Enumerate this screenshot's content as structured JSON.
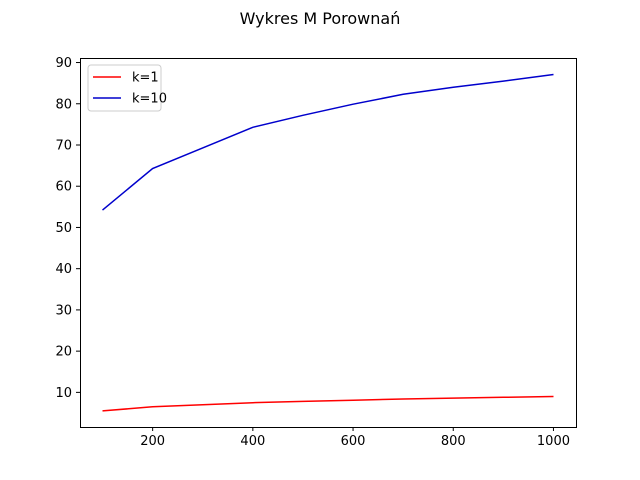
{
  "chart_data": {
    "type": "line",
    "title": "Wykres M Porownań",
    "xlabel": "",
    "ylabel": "",
    "xlim": [
      55,
      1045
    ],
    "ylim": [
      1.6,
      91.1
    ],
    "xticks": [
      200,
      400,
      600,
      800,
      1000
    ],
    "yticks": [
      10,
      20,
      30,
      40,
      50,
      60,
      70,
      80,
      90
    ],
    "grid": false,
    "legend": "upper left",
    "series": [
      {
        "name": "k=1",
        "color": "#ff0000",
        "x": [
          100,
          200,
          300,
          400,
          500,
          600,
          700,
          800,
          900,
          1000
        ],
        "y": [
          5.5,
          6.5,
          7.0,
          7.5,
          7.8,
          8.1,
          8.4,
          8.6,
          8.8,
          9.0
        ]
      },
      {
        "name": "k=10",
        "color": "#0000cc",
        "x": [
          100,
          200,
          300,
          400,
          500,
          600,
          700,
          800,
          900,
          1000
        ],
        "y": [
          54.2,
          64.3,
          69.3,
          74.3,
          77.2,
          79.9,
          82.3,
          84.0,
          85.5,
          87.1
        ]
      }
    ]
  }
}
